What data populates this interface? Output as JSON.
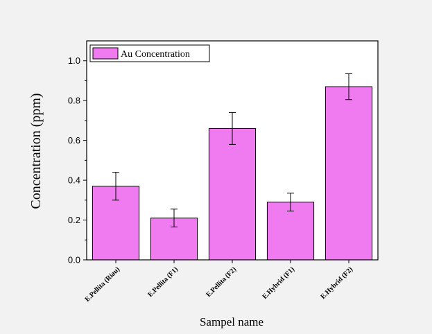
{
  "chart_data": {
    "type": "bar",
    "categories": [
      "E.Pellita (Riau)",
      "E.Pellita (F1)",
      "E.Pellita (F2)",
      "E.Hybrid (F1)",
      "E.Hybrid (F2)"
    ],
    "series": [
      {
        "name": "Au Concentration",
        "values": [
          0.37,
          0.21,
          0.66,
          0.29,
          0.87
        ],
        "errors": [
          0.07,
          0.045,
          0.08,
          0.045,
          0.065
        ]
      }
    ],
    "xlabel": "Sampel name",
    "ylabel": "Concentration (ppm)",
    "ylim": [
      0.0,
      1.1
    ],
    "yticks": [
      "0.0",
      "0.2",
      "0.4",
      "0.6",
      "0.8",
      "1.0"
    ],
    "grid": false,
    "legend_position": "top-left",
    "bar_color": "#f07bf0",
    "background_color": "#f2f2f2"
  }
}
